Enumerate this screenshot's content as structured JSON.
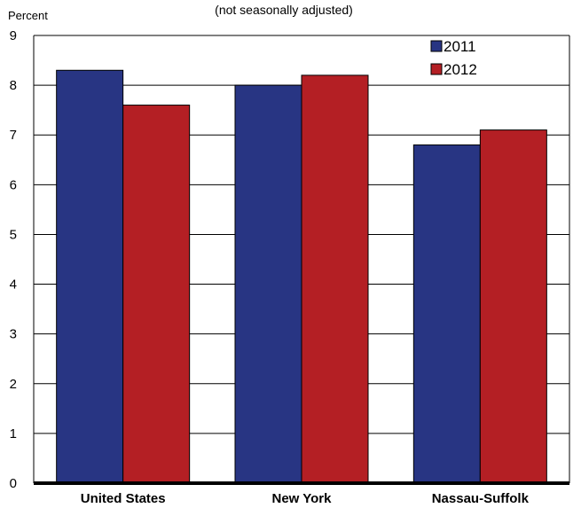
{
  "chart_data": {
    "type": "bar",
    "subtitle": "(not seasonally adjusted)",
    "ylabel": "Percent",
    "ylim": [
      0,
      9
    ],
    "yticks": [
      "0",
      "1",
      "2",
      "3",
      "4",
      "5",
      "6",
      "7",
      "8",
      "9"
    ],
    "categories": [
      "United States",
      "New York",
      "Nassau-Suffolk"
    ],
    "series": [
      {
        "name": "2011",
        "color": "#283583",
        "values": [
          8.3,
          8.0,
          6.8
        ]
      },
      {
        "name": "2012",
        "color": "#b41f24",
        "values": [
          7.6,
          8.2,
          7.1
        ]
      }
    ],
    "grid": true,
    "legend_position": "top-right"
  }
}
